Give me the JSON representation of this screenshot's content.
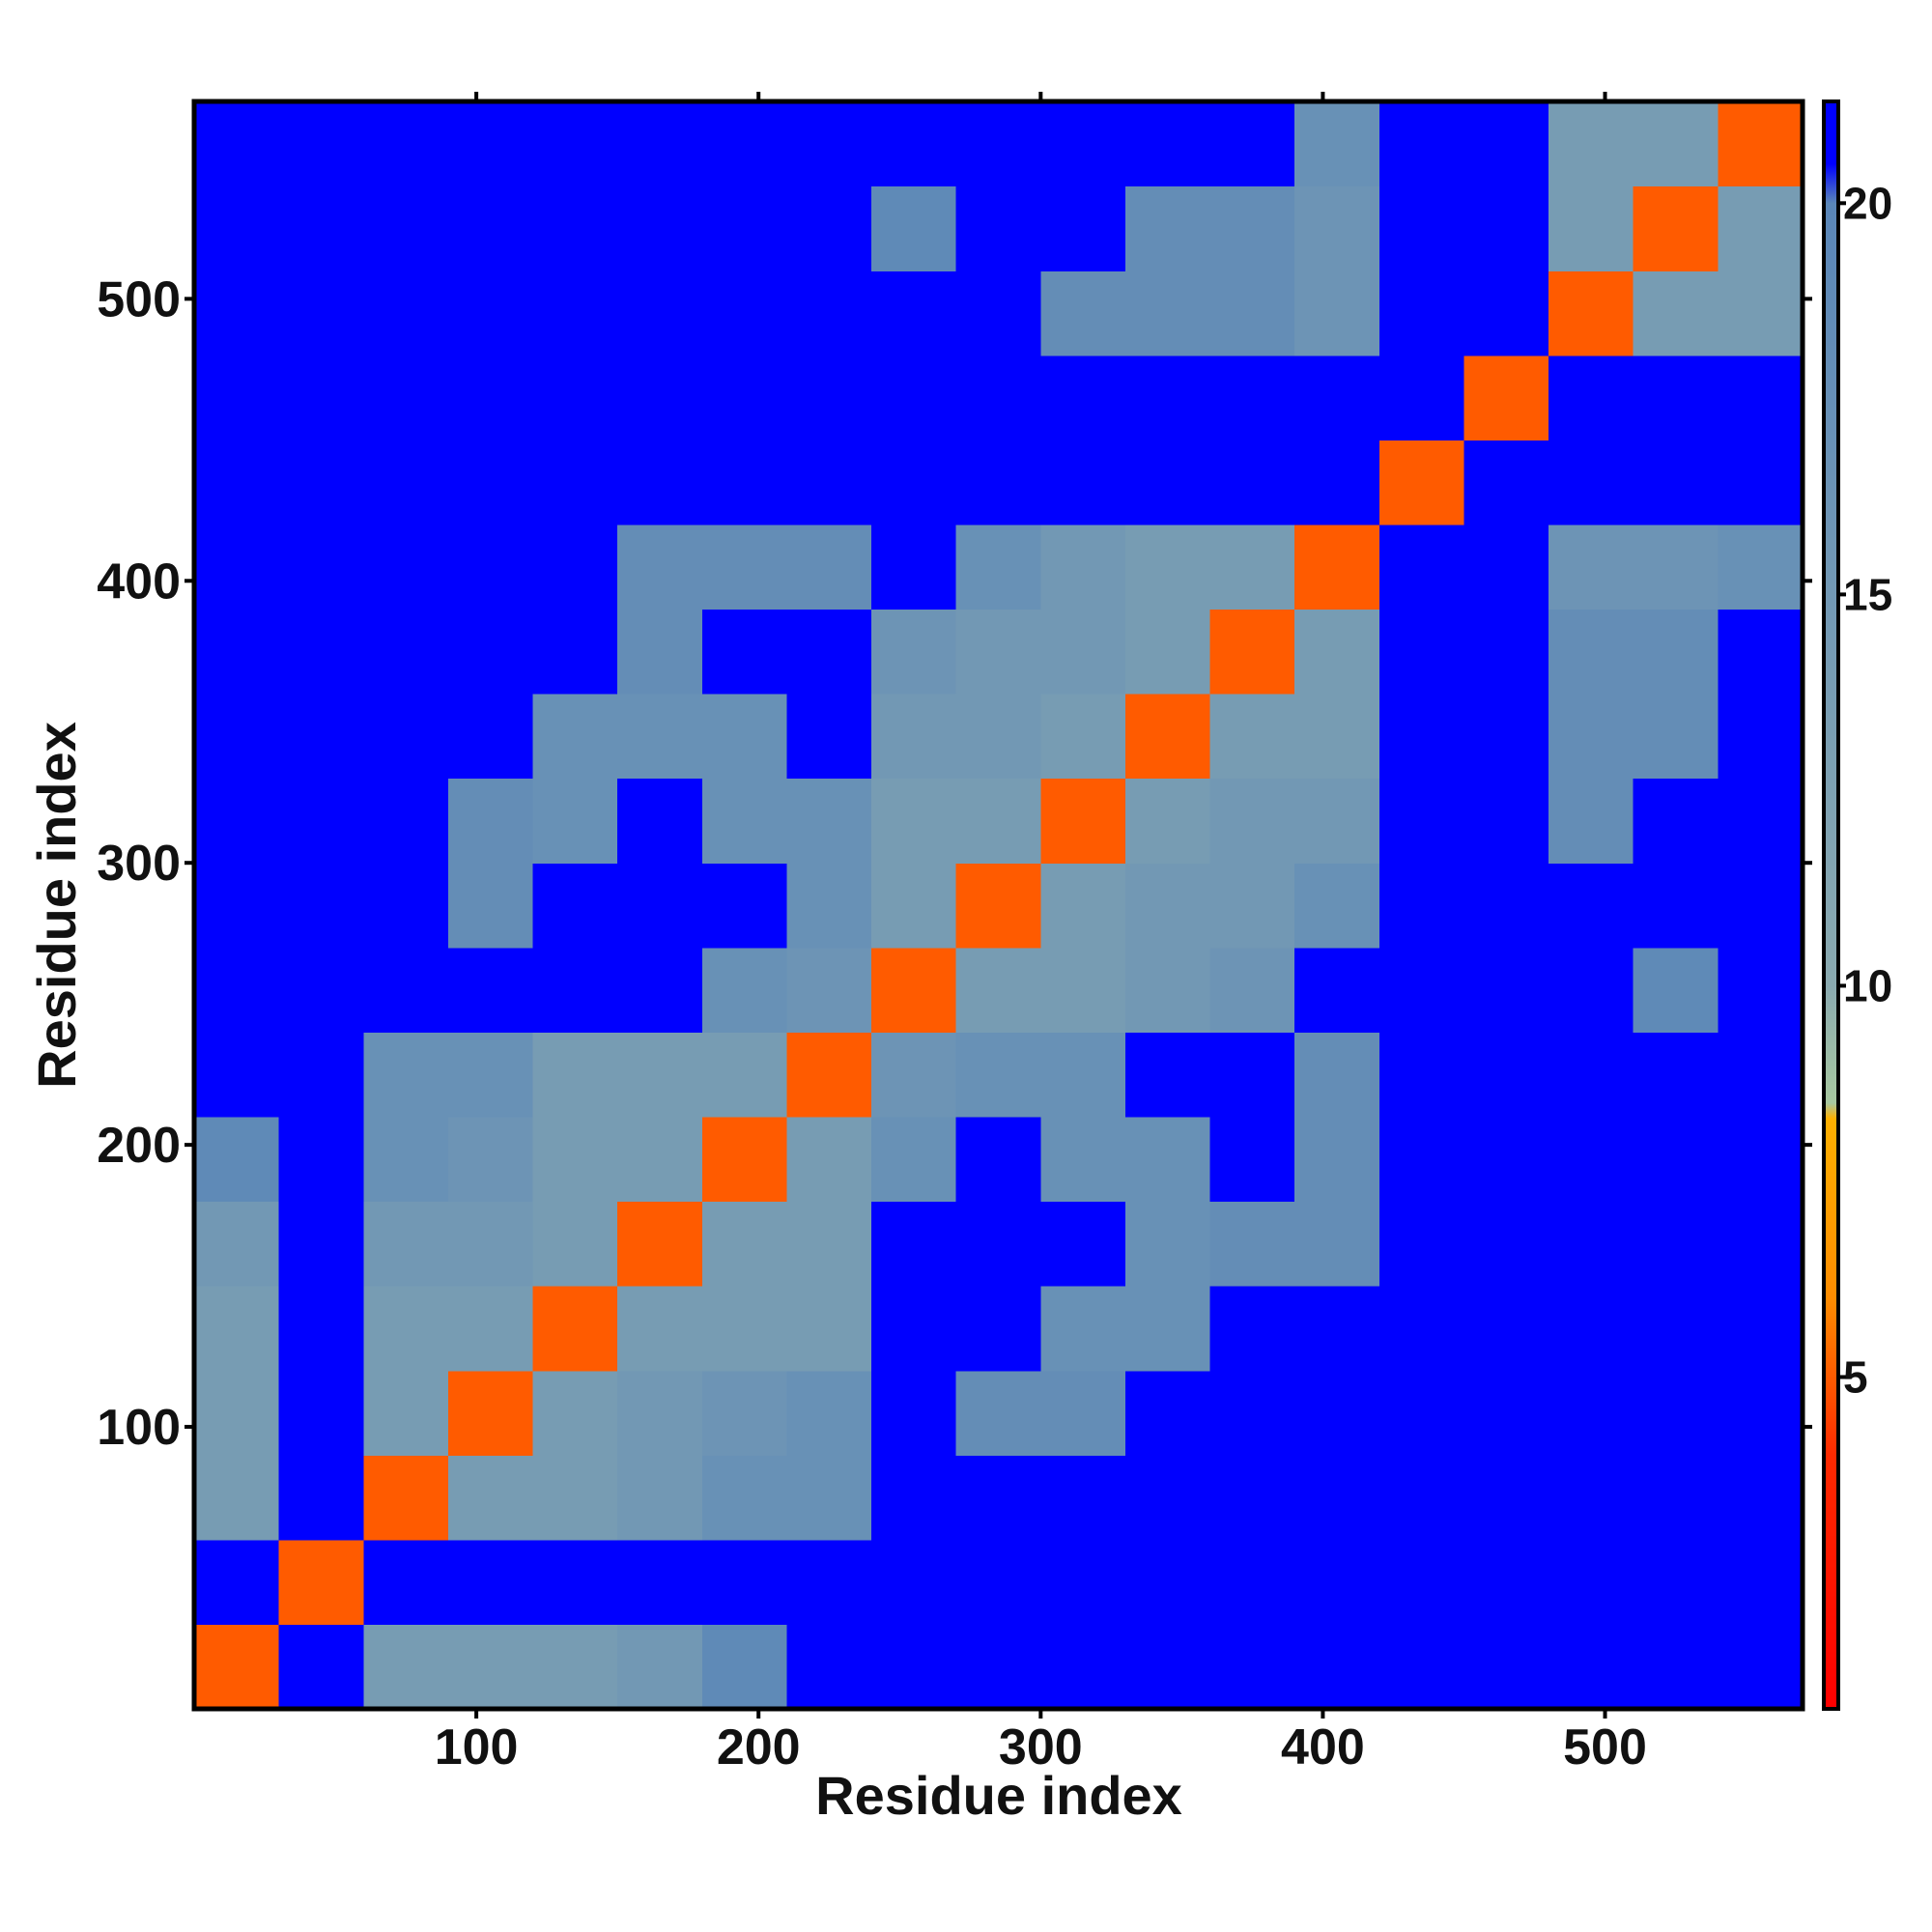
{
  "chart_data": {
    "type": "heatmap",
    "xlabel": "Residue index",
    "ylabel": "Residue index",
    "xbins": [
      0,
      30,
      60,
      90,
      120,
      150,
      180,
      210,
      240,
      270,
      300,
      330,
      360,
      390,
      420,
      450,
      480,
      510,
      540,
      570
    ],
    "ybins": [
      0,
      30,
      60,
      90,
      120,
      150,
      180,
      210,
      240,
      270,
      300,
      330,
      360,
      390,
      420,
      450,
      480,
      510,
      540,
      570
    ],
    "xlim": [
      0,
      570
    ],
    "ylim": [
      0,
      570
    ],
    "xticks": [
      100,
      200,
      300,
      400,
      500
    ],
    "yticks": [
      100,
      200,
      300,
      400,
      500
    ],
    "zlim": [
      0.76,
      21.3
    ],
    "zticks": [
      5,
      10,
      15,
      20
    ],
    "colorscale": [
      {
        "value": 0.76,
        "color": "#ff0000"
      },
      {
        "value": 4,
        "color": "#ff2a00"
      },
      {
        "value": 6,
        "color": "#ff8c00"
      },
      {
        "value": 8.3,
        "color": "#ffb000"
      },
      {
        "value": 8.5,
        "color": "#a8c8a0"
      },
      {
        "value": 10,
        "color": "#8aaab0"
      },
      {
        "value": 20,
        "color": "#5a86b8"
      },
      {
        "value": 20.5,
        "color": "#0000ff"
      },
      {
        "value": 21.3,
        "color": "#0000ff"
      }
    ],
    "z": [
      [
        5,
        21,
        14,
        14,
        14,
        15,
        19,
        21,
        21,
        21,
        21,
        21,
        21,
        21,
        21,
        21,
        21,
        21,
        21
      ],
      [
        21,
        5,
        21,
        21,
        21,
        21,
        21,
        21,
        21,
        21,
        21,
        21,
        21,
        21,
        21,
        21,
        21,
        21,
        21
      ],
      [
        14,
        21,
        5,
        14,
        14,
        15,
        17,
        17,
        21,
        21,
        21,
        21,
        21,
        21,
        21,
        21,
        21,
        21,
        21
      ],
      [
        14,
        21,
        14,
        5,
        14,
        15,
        16,
        17,
        21,
        18,
        18,
        21,
        21,
        21,
        21,
        21,
        21,
        21,
        21
      ],
      [
        14,
        21,
        14,
        14,
        5,
        14,
        14,
        14,
        21,
        21,
        17,
        17,
        21,
        21,
        21,
        21,
        21,
        21,
        21
      ],
      [
        15,
        21,
        15,
        15,
        14,
        5,
        14,
        14,
        21,
        21,
        21,
        17,
        18,
        18,
        21,
        21,
        21,
        21,
        21
      ],
      [
        19,
        21,
        17,
        16,
        14,
        14,
        5,
        14,
        17,
        21,
        17,
        17,
        21,
        18,
        21,
        21,
        21,
        21,
        21
      ],
      [
        21,
        21,
        17,
        17,
        14,
        14,
        14,
        5,
        16,
        17,
        17,
        21,
        21,
        18,
        21,
        21,
        21,
        21,
        21
      ],
      [
        21,
        21,
        21,
        21,
        21,
        21,
        17,
        16,
        5,
        14,
        14,
        15,
        16,
        21,
        21,
        21,
        21,
        19,
        21
      ],
      [
        21,
        21,
        21,
        18,
        21,
        21,
        21,
        17,
        14,
        5,
        14,
        15,
        15,
        17,
        21,
        21,
        21,
        21,
        21
      ],
      [
        21,
        21,
        21,
        18,
        17,
        21,
        17,
        17,
        14,
        14,
        5,
        14,
        15,
        15,
        21,
        21,
        18,
        21,
        21
      ],
      [
        21,
        21,
        21,
        21,
        17,
        17,
        17,
        21,
        15,
        15,
        14,
        5,
        14,
        14,
        21,
        21,
        18,
        18,
        21
      ],
      [
        21,
        21,
        21,
        21,
        21,
        18,
        21,
        21,
        16,
        15,
        15,
        14,
        5,
        14,
        21,
        21,
        18,
        18,
        21
      ],
      [
        21,
        21,
        21,
        21,
        21,
        18,
        18,
        18,
        21,
        17,
        15,
        14,
        14,
        5,
        21,
        21,
        16,
        16,
        17
      ],
      [
        21,
        21,
        21,
        21,
        21,
        21,
        21,
        21,
        21,
        21,
        21,
        21,
        21,
        21,
        5,
        21,
        21,
        21,
        21
      ],
      [
        21,
        21,
        21,
        21,
        21,
        21,
        21,
        21,
        21,
        21,
        21,
        21,
        21,
        21,
        21,
        5,
        21,
        21,
        21
      ],
      [
        21,
        21,
        21,
        21,
        21,
        21,
        21,
        21,
        21,
        21,
        18,
        18,
        18,
        16,
        21,
        21,
        5,
        14,
        14
      ],
      [
        21,
        21,
        21,
        21,
        21,
        21,
        21,
        21,
        19,
        21,
        21,
        18,
        18,
        16,
        21,
        21,
        14,
        5,
        14
      ],
      [
        21,
        21,
        21,
        21,
        21,
        21,
        21,
        21,
        21,
        21,
        21,
        21,
        21,
        17,
        21,
        21,
        14,
        14,
        5
      ]
    ]
  }
}
